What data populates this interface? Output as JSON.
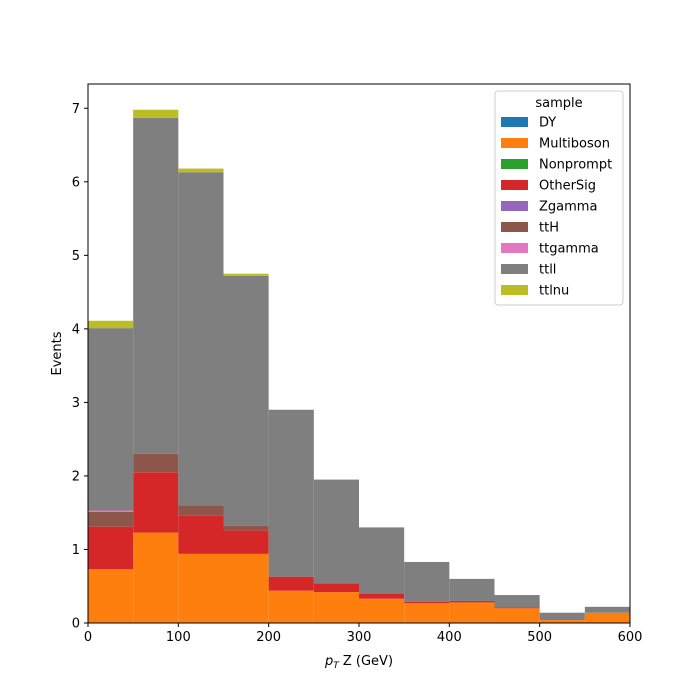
{
  "chart_data": {
    "type": "bar",
    "stacked": true,
    "histogram": true,
    "xlabel_prefix": "p",
    "xlabel_sub": "T",
    "xlabel_rest": " Z (GeV)",
    "ylabel": "Events",
    "xlim": [
      0,
      600
    ],
    "ylim": [
      0,
      7.33
    ],
    "xticks": [
      0,
      100,
      200,
      300,
      400,
      500,
      600
    ],
    "yticks": [
      0,
      1,
      2,
      3,
      4,
      5,
      6,
      7
    ],
    "grid": false,
    "legend_title": "sample",
    "legend_position": "top-right",
    "bin_edges": [
      0,
      50,
      100,
      150,
      200,
      250,
      300,
      350,
      400,
      450,
      500,
      550,
      600
    ],
    "series": [
      {
        "name": "DY",
        "color": "#1f77b4",
        "values": [
          0,
          0,
          0,
          0,
          0,
          0,
          0,
          0,
          0,
          0,
          0,
          0
        ]
      },
      {
        "name": "Multiboson",
        "color": "#ff7f0e",
        "values": [
          0.73,
          1.23,
          0.94,
          0.94,
          0.44,
          0.42,
          0.33,
          0.27,
          0.28,
          0.2,
          0.04,
          0.14
        ]
      },
      {
        "name": "Nonprompt",
        "color": "#2ca02c",
        "values": [
          0,
          0,
          0,
          0,
          0,
          0,
          0,
          0,
          0,
          0,
          0,
          0
        ]
      },
      {
        "name": "OtherSig",
        "color": "#d62728",
        "values": [
          0.58,
          0.82,
          0.52,
          0.32,
          0.19,
          0.12,
          0.07,
          0.02,
          0.02,
          0.01,
          0,
          0
        ]
      },
      {
        "name": "Zgamma",
        "color": "#9467bd",
        "values": [
          0,
          0,
          0,
          0,
          0,
          0,
          0,
          0,
          0,
          0,
          0,
          0
        ]
      },
      {
        "name": "ttH",
        "color": "#8c564b",
        "values": [
          0.2,
          0.25,
          0.14,
          0.06,
          0,
          0,
          0,
          0,
          0,
          0,
          0,
          0
        ]
      },
      {
        "name": "ttgamma",
        "color": "#e377c2",
        "values": [
          0.02,
          0,
          0,
          0,
          0,
          0,
          0,
          0,
          0,
          0,
          0,
          0
        ]
      },
      {
        "name": "ttll",
        "color": "#7f7f7f",
        "values": [
          2.48,
          4.57,
          4.53,
          3.4,
          2.27,
          1.41,
          0.9,
          0.54,
          0.3,
          0.17,
          0.1,
          0.08
        ]
      },
      {
        "name": "ttlnu",
        "color": "#bcbd22",
        "values": [
          0.1,
          0.11,
          0.05,
          0.03,
          0,
          0,
          0,
          0,
          0,
          0,
          0,
          0
        ]
      }
    ]
  }
}
